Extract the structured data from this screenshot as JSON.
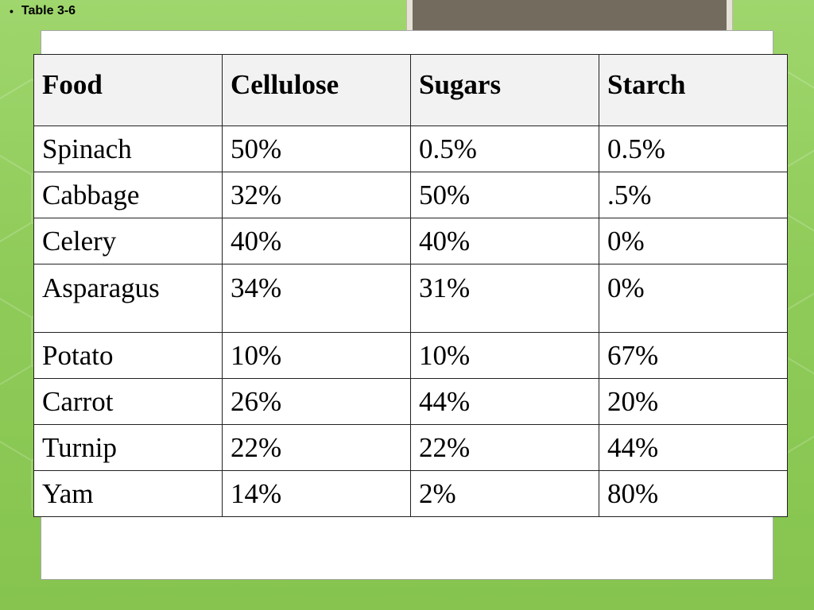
{
  "slide": {
    "bullet": "Table 3-6"
  },
  "table": {
    "headers": [
      "Food",
      "Cellulose",
      "Sugars",
      "Starch"
    ],
    "rows": [
      [
        "Spinach",
        "50%",
        "0.5%",
        "0.5%"
      ],
      [
        "Cabbage",
        "32%",
        "50%",
        ".5%"
      ],
      [
        "Celery",
        "40%",
        "40%",
        "0%"
      ],
      [
        "Asparagus",
        "34%",
        "31%",
        "0%"
      ],
      [
        "Potato",
        "10%",
        "10%",
        "67%"
      ],
      [
        "Carrot",
        "26%",
        "44%",
        "20%"
      ],
      [
        "Turnip",
        "22%",
        "22%",
        "44%"
      ],
      [
        "Yam",
        "14%",
        "2%",
        "80%"
      ]
    ]
  },
  "colors": {
    "background": "#8fcb59",
    "header_fill": "#f2f2f2",
    "photo_fill": "#746b5f",
    "border": "#222222"
  }
}
